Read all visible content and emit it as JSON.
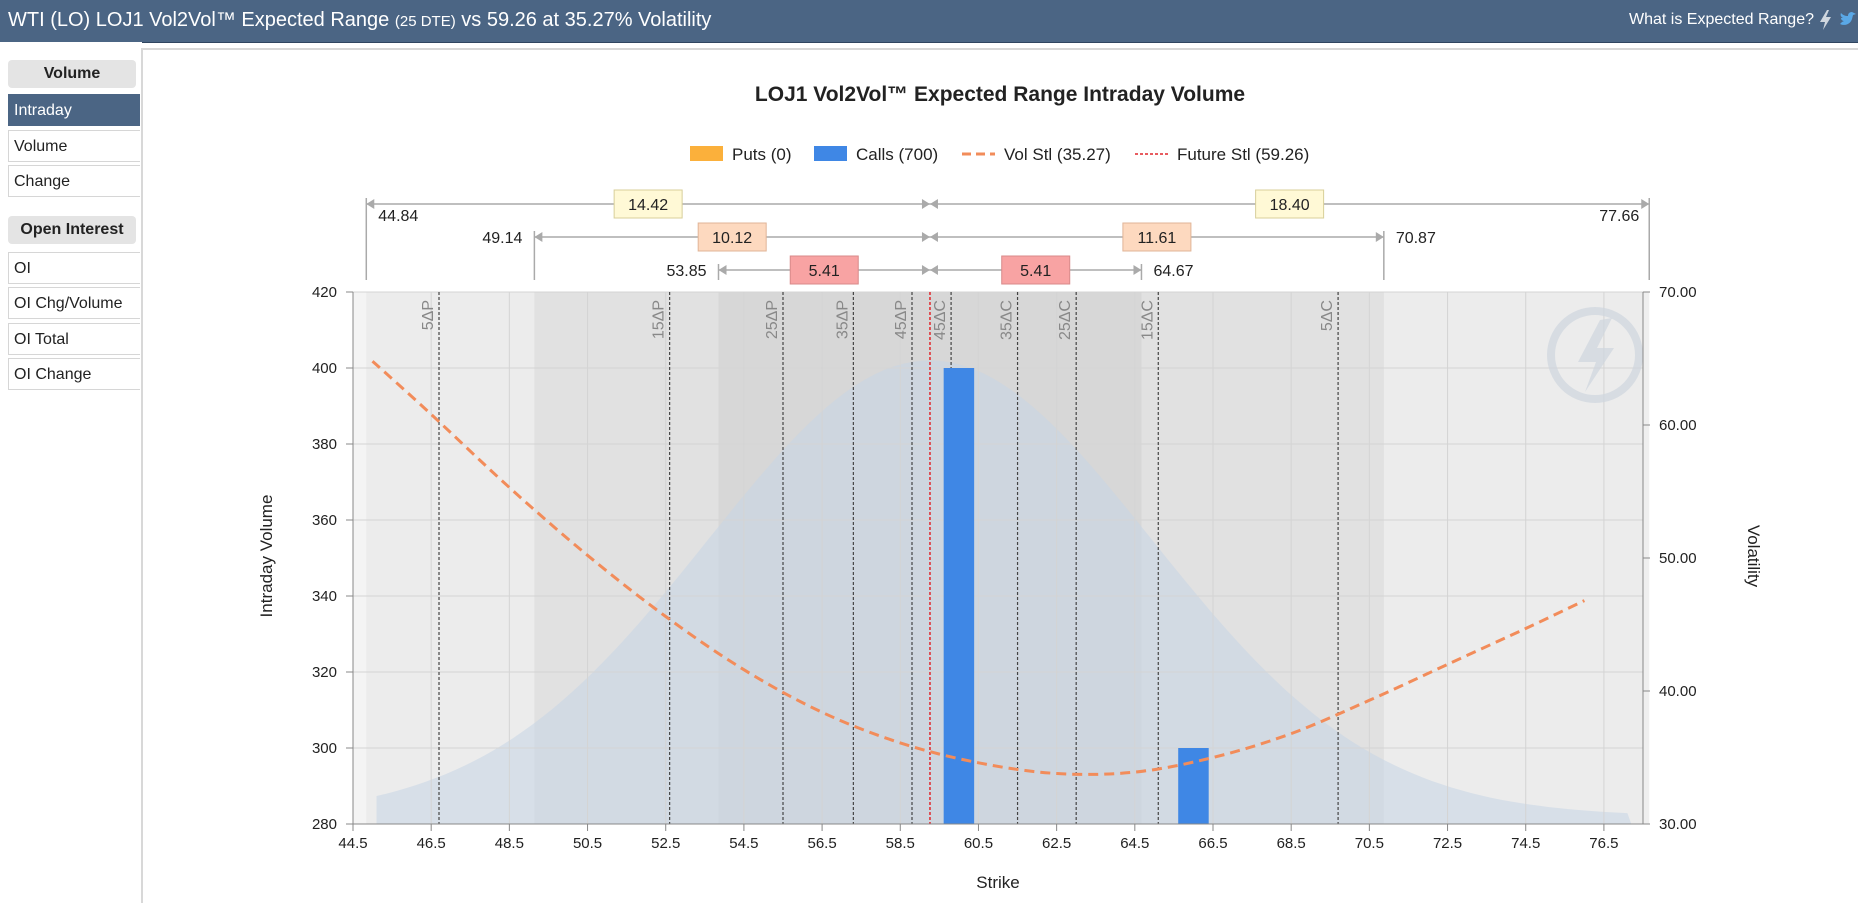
{
  "header": {
    "title_main": "WTI (LO) LOJ1 Vol2Vol™ Expected Range",
    "title_dte": "(25 DTE)",
    "title_tail": "vs 59.26 at 35.27% Volatility",
    "help_label": "What is Expected Range?",
    "icons": [
      "lightning-icon",
      "twitter-icon"
    ]
  },
  "sidebar": {
    "volume_heading": "Volume",
    "volume_items": [
      {
        "label": "Intraday",
        "active": true
      },
      {
        "label": "Volume",
        "active": false
      },
      {
        "label": "Change",
        "active": false
      }
    ],
    "oi_heading": "Open Interest",
    "oi_items": [
      {
        "label": "OI"
      },
      {
        "label": "OI Chg/Volume"
      },
      {
        "label": "OI Total"
      },
      {
        "label": "OI Change"
      }
    ]
  },
  "colors": {
    "header_bg": "#4b6584",
    "puts": "#fbb03b",
    "calls": "#3f87e5",
    "vol_line": "#f28c5a",
    "future_line": "#e0262b",
    "bell": "#c7d6e5"
  },
  "chart_data": {
    "type": "bar",
    "title": "LOJ1 Vol2Vol™ Expected Range Intraday Volume",
    "xlabel": "Strike",
    "ylabel": "Intraday Volume",
    "y2label": "Volatility",
    "xlim": [
      44.5,
      77.5
    ],
    "ylim": [
      280,
      420
    ],
    "y2lim": [
      30,
      70
    ],
    "x_ticks": [
      "44.5",
      "46.5",
      "48.5",
      "50.5",
      "52.5",
      "54.5",
      "56.5",
      "58.5",
      "60.5",
      "62.5",
      "64.5",
      "66.5",
      "68.5",
      "70.5",
      "72.5",
      "74.5",
      "76.5"
    ],
    "y_ticks": [
      280,
      300,
      320,
      340,
      360,
      380,
      400,
      420
    ],
    "y2_ticks": [
      "30.00",
      "40.00",
      "50.00",
      "60.00",
      "70.00"
    ],
    "legend": [
      {
        "name": "Puts (0)",
        "kind": "rect",
        "color": "#fbb03b"
      },
      {
        "name": "Calls (700)",
        "kind": "rect",
        "color": "#3f87e5"
      },
      {
        "name": "Vol Stl (35.27)",
        "kind": "dash",
        "color": "#f28c5a"
      },
      {
        "name": "Future Stl (59.26)",
        "kind": "dot",
        "color": "#e0262b"
      }
    ],
    "legend_position": "top",
    "future_settle": 59.26,
    "series": [
      {
        "name": "Puts (0)",
        "bars": []
      },
      {
        "name": "Calls (700)",
        "bars": [
          {
            "x": 60.0,
            "value": 400
          },
          {
            "x": 66.0,
            "value": 300
          }
        ]
      },
      {
        "name": "Vol Stl (35.27)",
        "axis": "right",
        "points": [
          [
            45.0,
            64.8
          ],
          [
            46.5,
            60.8
          ],
          [
            48.5,
            55.3
          ],
          [
            50.5,
            50.2
          ],
          [
            52.5,
            45.6
          ],
          [
            54.5,
            41.6
          ],
          [
            56.5,
            38.4
          ],
          [
            58.5,
            36.1
          ],
          [
            60.5,
            34.6
          ],
          [
            62.5,
            33.8
          ],
          [
            64.5,
            33.9
          ],
          [
            66.5,
            35.0
          ],
          [
            68.5,
            36.8
          ],
          [
            70.5,
            39.3
          ],
          [
            72.5,
            42.0
          ],
          [
            74.5,
            44.7
          ],
          [
            76.0,
            46.8
          ]
        ]
      }
    ],
    "delta_lines": [
      {
        "label": "5ΔP",
        "x": 46.7
      },
      {
        "label": "15ΔP",
        "x": 52.6
      },
      {
        "label": "25ΔP",
        "x": 55.5
      },
      {
        "label": "35ΔP",
        "x": 57.3
      },
      {
        "label": "45ΔP",
        "x": 58.8
      },
      {
        "label": "45ΔC",
        "x": 59.8
      },
      {
        "label": "35ΔC",
        "x": 61.5
      },
      {
        "label": "25ΔC",
        "x": 63.0
      },
      {
        "label": "15ΔC",
        "x": 65.1
      },
      {
        "label": "5ΔC",
        "x": 69.7
      }
    ],
    "ranges": [
      {
        "low": "44.84",
        "high": "77.66",
        "left_width": "14.42",
        "right_width": "18.40"
      },
      {
        "low": "49.14",
        "high": "70.87",
        "left_width": "10.12",
        "right_width": "11.61"
      },
      {
        "low": "53.85",
        "high": "64.67",
        "left_width": "5.41",
        "right_width": "5.41"
      }
    ]
  }
}
